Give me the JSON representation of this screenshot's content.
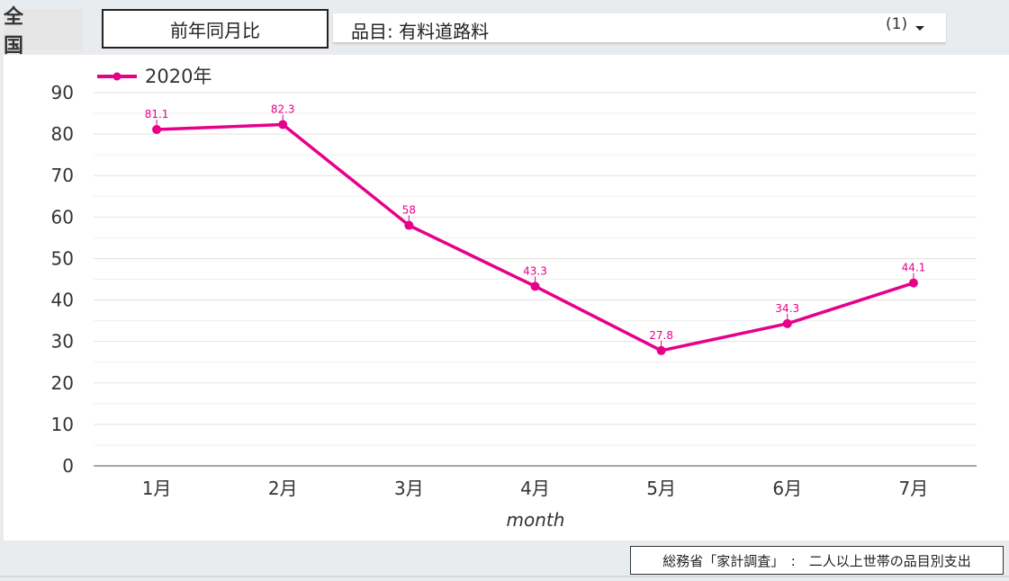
{
  "header": {
    "region": "全　国",
    "metric_button": "前年同月比",
    "item_filter": "品目: 有料道路料",
    "item_count": "(1)",
    "caret_icon": "caret-down-icon"
  },
  "chart_data": {
    "type": "line",
    "categories": [
      "1月",
      "2月",
      "3月",
      "4月",
      "5月",
      "6月",
      "7月"
    ],
    "series": [
      {
        "name": "2020年",
        "values": [
          81.1,
          82.3,
          58,
          43.3,
          27.8,
          34.3,
          44.1
        ],
        "color": "#e6008a"
      }
    ],
    "data_labels": [
      "81.1",
      "82.3",
      "58",
      "43.3",
      "27.8",
      "34.3",
      "44.1"
    ],
    "xlabel": "month",
    "ylabel": "",
    "ylim": [
      0,
      90
    ],
    "yticks": [
      0,
      10,
      20,
      30,
      40,
      50,
      60,
      70,
      80,
      90
    ],
    "grid": true,
    "legend_position": "top-left"
  },
  "footer": {
    "source": "総務省「家計調査」　:　二人以上世帯の品目別支出"
  }
}
